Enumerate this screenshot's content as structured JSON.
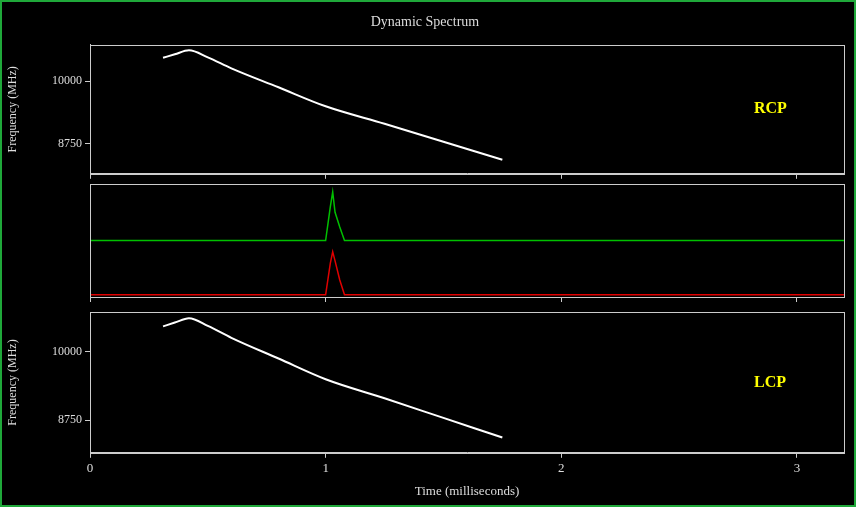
{
  "chart_data": [
    {
      "type": "line",
      "title": "Dynamic Spectrum",
      "y_label": "Frequency (MHz)",
      "annotation": "RCP",
      "x": [
        0.31,
        0.36,
        0.42,
        0.5,
        0.6,
        0.8,
        1.0,
        1.25,
        1.5,
        1.75
      ],
      "values": [
        10470,
        10540,
        10620,
        10480,
        10260,
        9880,
        9500,
        9150,
        8790,
        8430
      ],
      "color": "#ffffff",
      "xlim": [
        0,
        3.2
      ],
      "xticks": [
        0,
        1,
        2,
        3
      ],
      "ylim": [
        8150,
        10730
      ],
      "yticks": [
        8750,
        10000
      ],
      "grid": false,
      "tick_labels": "y"
    },
    {
      "type": "line",
      "x": [
        0,
        1.0,
        1.02,
        1.03,
        1.04,
        1.06,
        1.08,
        3.2
      ],
      "series": [
        {
          "color": "#00c000",
          "values": [
            0.5,
            0.5,
            0.8,
            0.93,
            0.75,
            0.62,
            0.5,
            0.5
          ]
        },
        {
          "color": "#e00000",
          "values": [
            0.02,
            0.02,
            0.3,
            0.4,
            0.32,
            0.15,
            0.02,
            0.02
          ]
        }
      ],
      "xlim": [
        0,
        3.2
      ],
      "xticks": [
        0,
        1,
        2,
        3
      ],
      "ylim": [
        0,
        1
      ],
      "grid": false,
      "tick_labels": false
    },
    {
      "type": "line",
      "y_label": "Frequency (MHz)",
      "x_label": "Time (milliseconds)",
      "annotation": "LCP",
      "x": [
        0.31,
        0.36,
        0.42,
        0.5,
        0.6,
        0.8,
        1.0,
        1.25,
        1.5,
        1.75
      ],
      "values": [
        10470,
        10540,
        10620,
        10480,
        10260,
        9880,
        9500,
        9150,
        8790,
        8430
      ],
      "color": "#ffffff",
      "xlim": [
        0,
        3.2
      ],
      "xticks": [
        0,
        1,
        2,
        3
      ],
      "ylim": [
        8150,
        10730
      ],
      "yticks": [
        8750,
        10000
      ],
      "grid": false,
      "tick_labels": true
    }
  ]
}
